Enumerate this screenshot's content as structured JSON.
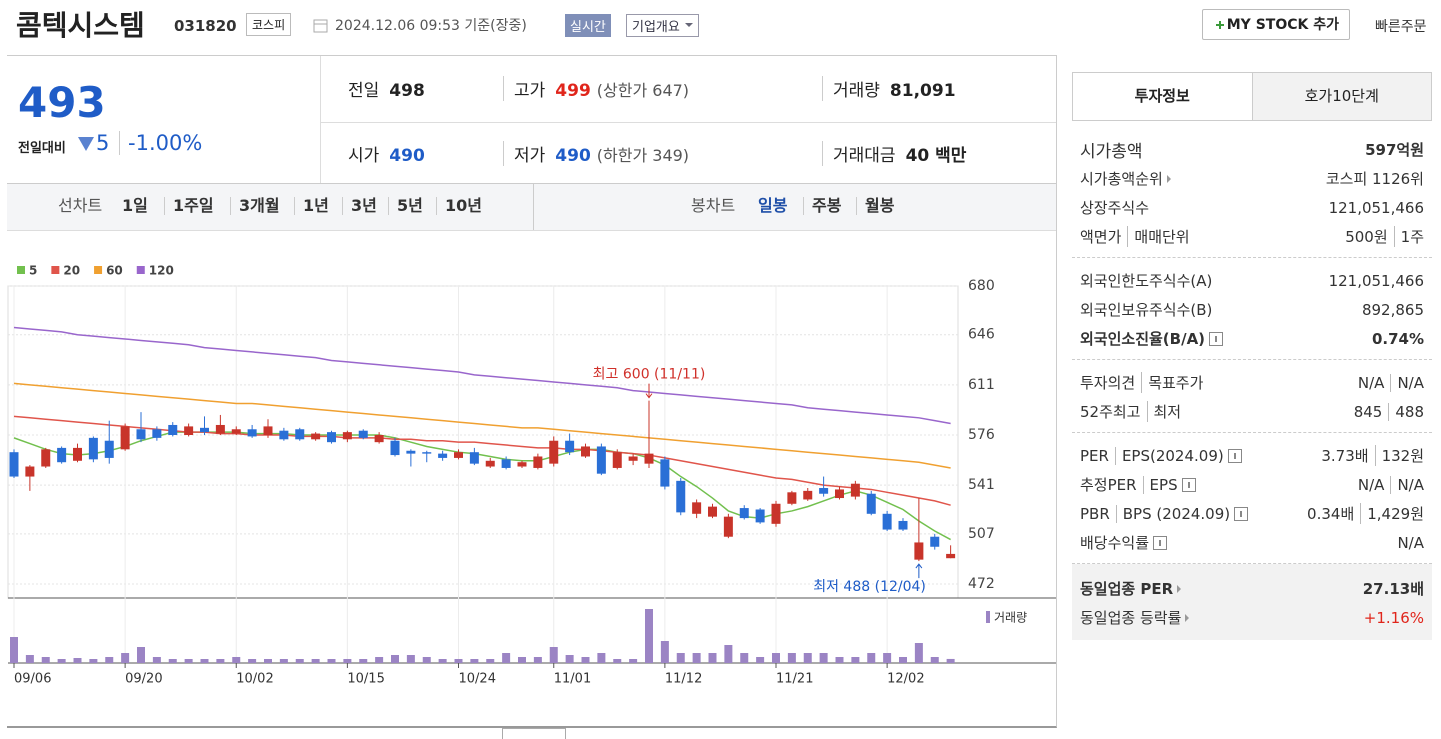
{
  "header": {
    "name": "콤텍시스템",
    "code": "031820",
    "market": "코스피",
    "time": "2024.12.06 09:53 기준(장중)",
    "realtime": "실시간",
    "company": "기업개요",
    "mystock": "MY STOCK 추가",
    "quick_order": "빠른주문"
  },
  "quote": {
    "price": "493",
    "change_label": "전일대비",
    "change": "5",
    "change_pct": "-1.00%",
    "items": [
      {
        "label": "전일",
        "value": "498"
      },
      {
        "label": "고가",
        "value": "499",
        "note": "(상한가 647)",
        "color": "#e0251b"
      },
      {
        "label": "거래량",
        "value": "81,091"
      },
      {
        "label": "시가",
        "value": "490",
        "color": "#1f5cc7"
      },
      {
        "label": "저가",
        "value": "490",
        "note": "(하한가 349)",
        "color": "#1f5cc7"
      },
      {
        "label": "거래대금",
        "value": "40 백만"
      }
    ]
  },
  "periods": {
    "line_label": "선차트",
    "line": [
      "1일",
      "1주일",
      "3개월",
      "1년",
      "3년",
      "5년",
      "10년"
    ],
    "candle_label": "봉차트",
    "candle": [
      "일봉",
      "주봉",
      "월봉"
    ]
  },
  "chart_data": {
    "type": "candlestick",
    "up_color": "#c8342a",
    "down_color": "#2a6fd6",
    "grid": true,
    "categories": [
      "09/06",
      null,
      null,
      null,
      null,
      null,
      null,
      "09/20",
      null,
      null,
      null,
      null,
      null,
      null,
      "10/02",
      null,
      null,
      null,
      null,
      null,
      null,
      "10/15",
      null,
      null,
      null,
      null,
      null,
      null,
      "10/24",
      null,
      null,
      null,
      null,
      null,
      "11/01",
      null,
      null,
      null,
      null,
      null,
      null,
      "11/12",
      null,
      null,
      null,
      null,
      null,
      null,
      "11/21",
      null,
      null,
      null,
      null,
      null,
      null,
      "12/02",
      null,
      null,
      null,
      null
    ],
    "open": [
      564,
      547,
      554,
      567,
      558,
      574,
      572,
      566,
      580,
      580,
      583,
      576,
      581,
      577,
      577,
      580,
      576,
      579,
      580,
      573,
      578,
      573,
      579,
      571,
      572,
      565,
      564,
      563,
      560,
      564,
      554,
      559,
      554,
      553,
      556,
      572,
      561,
      568,
      553,
      558,
      556,
      559,
      544,
      521,
      519,
      505,
      525,
      524,
      514,
      528,
      531,
      539,
      532,
      533,
      535,
      521,
      516,
      489,
      505,
      490
    ],
    "high": [
      566,
      555,
      567,
      568,
      570,
      575,
      586,
      584,
      592,
      582,
      585,
      584,
      589,
      590,
      582,
      583,
      587,
      581,
      581,
      578,
      579,
      579,
      580,
      578,
      574,
      566,
      565,
      565,
      566,
      567,
      560,
      561,
      558,
      563,
      575,
      577,
      570,
      570,
      566,
      563,
      600,
      561,
      546,
      531,
      528,
      521,
      527,
      525,
      530,
      537,
      539,
      547,
      540,
      544,
      537,
      523,
      518,
      532,
      507,
      499
    ],
    "low": [
      546,
      537,
      553,
      556,
      557,
      557,
      556,
      565,
      571,
      572,
      575,
      575,
      576,
      576,
      576,
      574,
      574,
      572,
      572,
      572,
      570,
      571,
      573,
      570,
      561,
      554,
      557,
      558,
      559,
      555,
      553,
      552,
      553,
      552,
      554,
      562,
      560,
      548,
      552,
      555,
      553,
      538,
      520,
      518,
      518,
      504,
      517,
      514,
      512,
      527,
      530,
      533,
      531,
      531,
      520,
      509,
      509,
      488,
      496,
      490
    ],
    "close": [
      547,
      554,
      566,
      557,
      567,
      559,
      560,
      582,
      573,
      574,
      576,
      582,
      578,
      583,
      580,
      575,
      582,
      573,
      573,
      577,
      571,
      578,
      574,
      576,
      562,
      563,
      563,
      560,
      564,
      556,
      558,
      553,
      557,
      561,
      572,
      564,
      568,
      549,
      564,
      561,
      563,
      540,
      522,
      529,
      526,
      519,
      518,
      515,
      528,
      536,
      537,
      535,
      538,
      542,
      521,
      510,
      510,
      501,
      498,
      493
    ],
    "series": [
      {
        "name": "5",
        "color": "#72c04e",
        "values": [
          574,
          570,
          566,
          563,
          562,
          563,
          565,
          568,
          572,
          575,
          578,
          578,
          578,
          578,
          578,
          577,
          577,
          577,
          576,
          576,
          576,
          576,
          576,
          576,
          574,
          571,
          568,
          566,
          564,
          563,
          561,
          559,
          558,
          558,
          561,
          564,
          566,
          566,
          564,
          563,
          560,
          555,
          547,
          540,
          532,
          523,
          519,
          518,
          521,
          523,
          526,
          530,
          534,
          537,
          534,
          529,
          524,
          516,
          509,
          503
        ]
      },
      {
        "name": "20",
        "color": "#e0554b",
        "values": [
          589,
          588,
          587,
          586,
          585,
          584,
          583,
          582,
          581,
          580,
          579,
          578,
          578,
          577,
          577,
          576,
          576,
          576,
          575,
          575,
          575,
          574,
          574,
          574,
          573,
          573,
          572,
          572,
          571,
          571,
          570,
          569,
          568,
          567,
          567,
          566,
          566,
          565,
          564,
          563,
          562,
          560,
          558,
          556,
          554,
          552,
          550,
          548,
          546,
          545,
          543,
          541,
          540,
          539,
          538,
          536,
          534,
          532,
          530,
          527
        ]
      },
      {
        "name": "60",
        "color": "#f0a030",
        "values": [
          612,
          611,
          610,
          609,
          608,
          607,
          606,
          605,
          604,
          603,
          602,
          601,
          600,
          599,
          598,
          598,
          597,
          596,
          595,
          594,
          593,
          592,
          591,
          590,
          589,
          588,
          587,
          586,
          585,
          584,
          583,
          582,
          581,
          581,
          580,
          579,
          578,
          577,
          576,
          575,
          574,
          573,
          572,
          571,
          570,
          569,
          568,
          567,
          566,
          565,
          564,
          563,
          562,
          561,
          560,
          559,
          558,
          557,
          555,
          553
        ]
      },
      {
        "name": "120",
        "color": "#9966cc",
        "values": [
          651,
          650,
          649,
          648,
          646,
          645,
          644,
          643,
          642,
          641,
          640,
          639,
          637,
          636,
          635,
          634,
          633,
          632,
          631,
          630,
          628,
          627,
          626,
          625,
          624,
          623,
          622,
          621,
          620,
          618,
          617,
          616,
          615,
          614,
          613,
          612,
          611,
          610,
          609,
          607,
          606,
          605,
          604,
          603,
          602,
          601,
          600,
          599,
          598,
          597,
          595,
          594,
          593,
          592,
          591,
          590,
          589,
          588,
          586,
          584
        ]
      }
    ],
    "volume": {
      "name": "거래량",
      "color": "#9b84c4",
      "values": [
        520000,
        160000,
        120000,
        80000,
        100000,
        80000,
        120000,
        200000,
        320000,
        120000,
        80000,
        80000,
        80000,
        80000,
        120000,
        80000,
        80000,
        80000,
        80000,
        80000,
        80000,
        80000,
        80000,
        120000,
        160000,
        160000,
        120000,
        80000,
        80000,
        80000,
        80000,
        200000,
        120000,
        120000,
        320000,
        160000,
        120000,
        200000,
        80000,
        80000,
        1080000,
        440000,
        200000,
        200000,
        200000,
        360000,
        200000,
        120000,
        200000,
        200000,
        200000,
        200000,
        120000,
        120000,
        200000,
        200000,
        120000,
        400000,
        120000,
        81091
      ]
    },
    "ylim": [
      472,
      680
    ],
    "yticks": [
      472,
      507,
      541,
      576,
      611,
      646,
      680
    ],
    "annotations": {
      "high": "최고 600 (11/11)",
      "low": "최저 488 (12/04)"
    }
  },
  "info": {
    "tabs": [
      "투자정보",
      "호가10단계"
    ],
    "groups": [
      {
        "rows": [
          {
            "label": [
              "시가총액"
            ],
            "value": [
              "597억원"
            ],
            "big": true
          },
          {
            "label": [
              "시가총액순위"
            ],
            "arrow": true,
            "value": [
              "코스피 1126위"
            ]
          },
          {
            "label": [
              "상장주식수"
            ],
            "value": [
              "121,051,466"
            ]
          },
          {
            "label": [
              "액면가",
              "매매단위"
            ],
            "value": [
              "500원",
              "1주"
            ]
          }
        ]
      },
      {
        "rows": [
          {
            "label": [
              "외국인한도주식수(A)"
            ],
            "value": [
              "121,051,466"
            ]
          },
          {
            "label": [
              "외국인보유주식수(B)"
            ],
            "value": [
              "892,865"
            ]
          },
          {
            "label": [
              "외국인소진율(B/A)"
            ],
            "help": true,
            "value": [
              "0.74%"
            ],
            "bold": true
          }
        ]
      },
      {
        "rows": [
          {
            "label": [
              "투자의견",
              "목표주가"
            ],
            "value": [
              "N/A",
              "N/A"
            ]
          },
          {
            "label": [
              "52주최고",
              "최저"
            ],
            "value": [
              "845",
              "488"
            ]
          }
        ]
      },
      {
        "rows": [
          {
            "label": [
              "PER",
              "EPS(2024.09)"
            ],
            "help": true,
            "value": [
              "3.73배",
              "132원"
            ]
          },
          {
            "label": [
              "추정PER",
              "EPS"
            ],
            "help": true,
            "value": [
              "N/A",
              "N/A"
            ]
          },
          {
            "label": [
              "PBR",
              "BPS (2024.09)"
            ],
            "help": true,
            "value": [
              "0.34배",
              "1,429원"
            ]
          },
          {
            "label": [
              "배당수익률"
            ],
            "help": true,
            "value": [
              "N/A"
            ]
          }
        ]
      },
      {
        "rows": [
          {
            "label": [
              "동일업종 PER"
            ],
            "arrow": true,
            "value": [
              "27.13배"
            ],
            "bold": true
          },
          {
            "label": [
              "동일업종 등락률"
            ],
            "arrow": true,
            "value": [
              "+1.16%"
            ],
            "color": "#e0251b"
          }
        ],
        "shaded": true
      }
    ]
  }
}
